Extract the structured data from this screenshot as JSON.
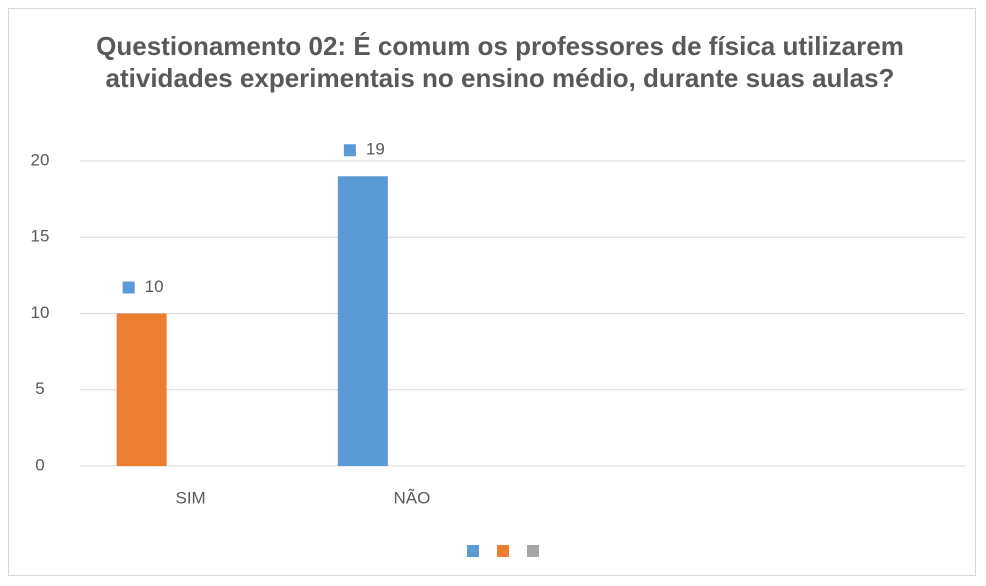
{
  "chart_data": {
    "type": "bar",
    "title": "Questionamento 02: É comum os professores de física utilizarem atividades experimentais no ensino médio, durante suas aulas?",
    "categories": [
      "SIM",
      "NÃO",
      null,
      null
    ],
    "series": [
      {
        "color": "#5b9bd5",
        "values": [
          null,
          19,
          null,
          null
        ]
      },
      {
        "color": "#ed7d31",
        "values": [
          10,
          null,
          null,
          null
        ]
      },
      {
        "color": "#a5a5a5",
        "values": [
          null,
          null,
          null,
          null
        ]
      }
    ],
    "ylim": [
      0,
      20
    ],
    "yticks": [
      0,
      5,
      10,
      15,
      20
    ],
    "grid": true,
    "legend": "bottom"
  }
}
